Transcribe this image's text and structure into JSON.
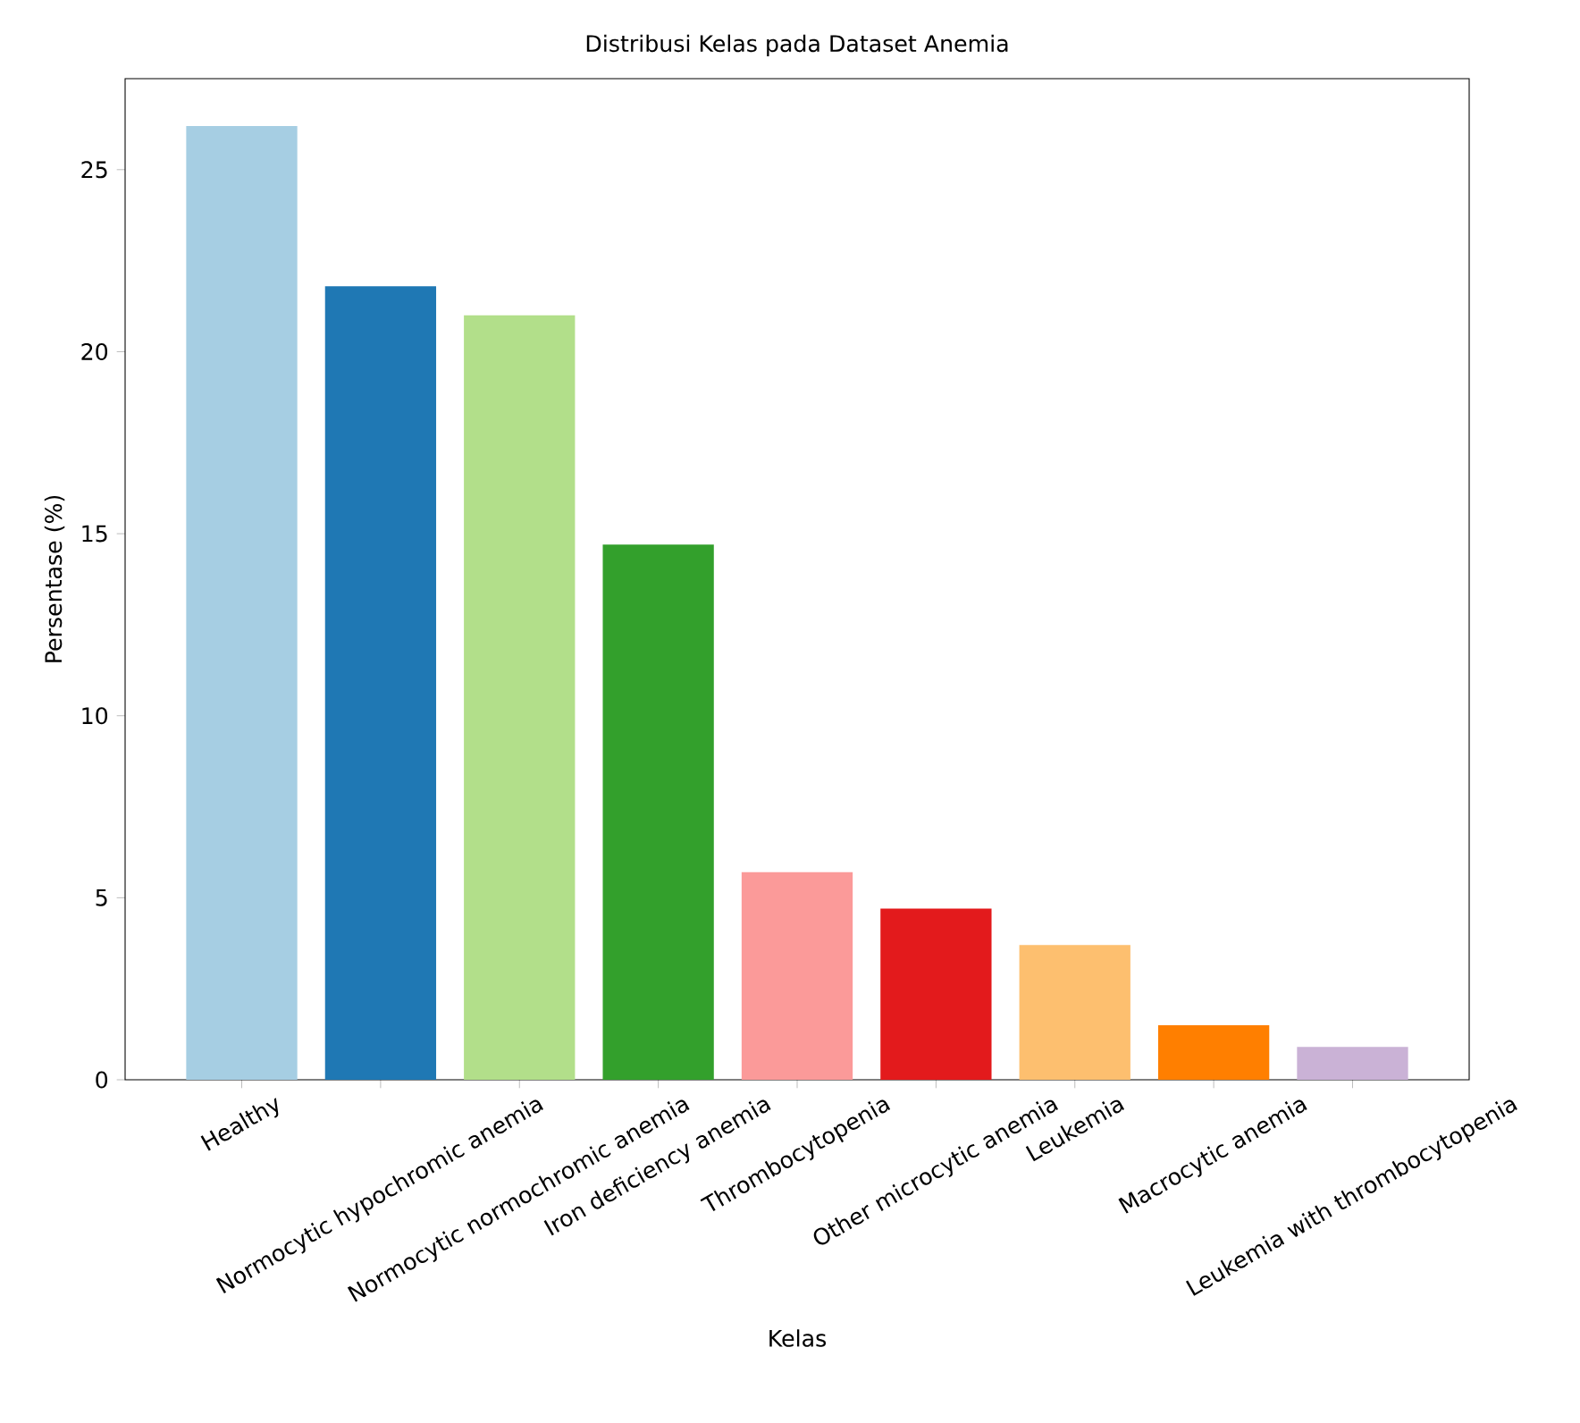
{
  "chart_data": {
    "type": "bar",
    "title": "Distribusi Kelas pada Dataset Anemia",
    "xlabel": "Kelas",
    "ylabel": "Persentase (%)",
    "categories": [
      "Healthy",
      "Normocytic hypochromic anemia",
      "Normocytic normochromic anemia",
      "Iron deficiency anemia",
      "Thrombocytopenia",
      "Other microcytic anemia",
      "Leukemia",
      "Macrocytic anemia",
      "Leukemia with thrombocytopenia"
    ],
    "values": [
      26.2,
      21.8,
      21.0,
      14.7,
      5.7,
      4.7,
      3.7,
      1.5,
      0.9
    ],
    "colors": [
      "#a6cee3",
      "#1f78b4",
      "#b2df8a",
      "#33a02c",
      "#fb9a99",
      "#e31a1c",
      "#fdbf6f",
      "#ff7f00",
      "#cab2d6"
    ],
    "ylim": [
      0,
      27.5
    ],
    "yticks": [
      0,
      5,
      10,
      15,
      20,
      25
    ],
    "grid": false
  }
}
